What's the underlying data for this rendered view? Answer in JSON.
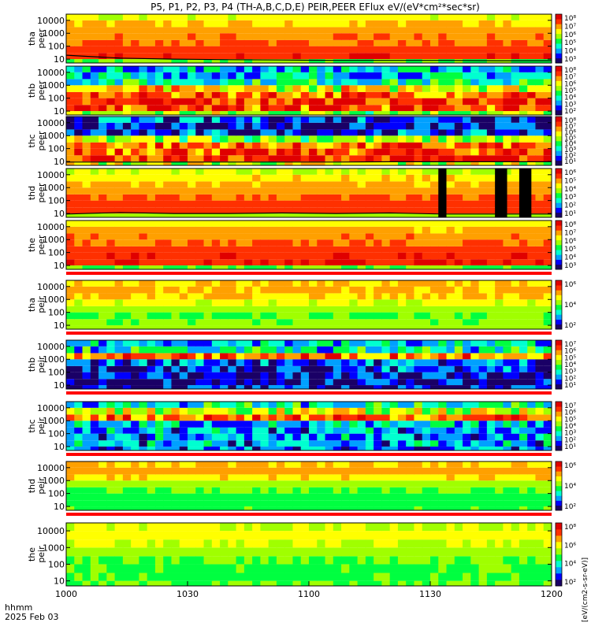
{
  "figure": {
    "title": "P5, P1, P2, P3, P4 (TH-A,B,C,D,E) PEIR,PEER EFlux eV/(eV*cm²*sec*sr)",
    "footer_line1": "hhmm",
    "footer_line2": "2025 Feb 03",
    "colorbar_label": "[eV/(cm2-s-sr-eV)]",
    "colors": {
      "background": "#ffffff",
      "separator_red": "#ff0000",
      "axis": "#000000"
    }
  },
  "chart_data": {
    "type": "heatmap",
    "x_axis": {
      "range": [
        "10:00",
        "12:00"
      ],
      "tick_labels": [
        "1000",
        "1030",
        "1100",
        "1130",
        "1200"
      ],
      "units": "hhmm"
    },
    "y_axis": {
      "scale": "log",
      "range": [
        5,
        30000
      ],
      "tick_labels": [
        "10",
        "100",
        "1000",
        "10000"
      ],
      "units": "eV"
    },
    "colormap": [
      "#1a0066",
      "#0000ff",
      "#00a0ff",
      "#00ffd0",
      "#00ff40",
      "#a0ff00",
      "#ffff00",
      "#ffa000",
      "#ff3000",
      "#e00000"
    ],
    "panels": [
      {
        "probe": "tha",
        "species": "peer",
        "ylabel": [
          "tha",
          "peer"
        ],
        "colorbar_ticks": [
          "10⁸",
          "10⁷",
          "10⁶",
          "10⁵",
          "10⁴",
          "10³"
        ],
        "bands": [
          [
            5,
            10,
            0.5
          ],
          [
            10,
            30,
            0.88
          ],
          [
            30,
            100,
            0.85
          ],
          [
            100,
            300,
            0.8
          ],
          [
            300,
            1000,
            0.78
          ],
          [
            1000,
            3000,
            0.74
          ],
          [
            3000,
            10000,
            0.7
          ],
          [
            10000,
            30000,
            0.62
          ]
        ],
        "noise": false,
        "overlay_line_ev": [
          20,
          12,
          10,
          9,
          8.5,
          8,
          8,
          8,
          7.5,
          7.5
        ]
      },
      {
        "probe": "thb",
        "species": "peer",
        "ylabel": [
          "thb",
          "peer"
        ],
        "colorbar_ticks": [
          "10⁸",
          "10⁷",
          "10⁶",
          "10⁵",
          "10⁴",
          "10³",
          "10²"
        ],
        "bands": [
          [
            5,
            10,
            0.55
          ],
          [
            10,
            30,
            0.85
          ],
          [
            30,
            100,
            0.88
          ],
          [
            100,
            300,
            0.82
          ],
          [
            300,
            1000,
            0.65
          ],
          [
            1000,
            3000,
            0.4
          ],
          [
            3000,
            10000,
            0.3
          ],
          [
            10000,
            30000,
            0.3
          ]
        ],
        "noise": true,
        "overlay_line_ev": null
      },
      {
        "probe": "thc",
        "species": "peer",
        "ylabel": [
          "thc",
          "peer"
        ],
        "colorbar_ticks": [
          "10⁸",
          "10⁷",
          "10⁶",
          "10⁵",
          "10⁴",
          "10³",
          "10²",
          "10¹"
        ],
        "bands": [
          [
            5,
            10,
            0.6
          ],
          [
            10,
            30,
            0.88
          ],
          [
            30,
            100,
            0.85
          ],
          [
            100,
            300,
            0.8
          ],
          [
            300,
            1000,
            0.55
          ],
          [
            1000,
            3000,
            0.15
          ],
          [
            3000,
            10000,
            0.12
          ],
          [
            10000,
            30000,
            0.2
          ]
        ],
        "noise": true,
        "overlay_line_ev": [
          9,
          9,
          9,
          9,
          9,
          9,
          9.5,
          9.5,
          9.5,
          9.5
        ]
      },
      {
        "probe": "thd",
        "species": "peer",
        "ylabel": [
          "thd",
          "peer"
        ],
        "colorbar_ticks": [
          "10⁶",
          "10⁵",
          "10⁴",
          "10³",
          "10²",
          "10¹"
        ],
        "bands": [
          [
            5,
            10,
            0.55
          ],
          [
            10,
            30,
            0.85
          ],
          [
            30,
            100,
            0.83
          ],
          [
            100,
            300,
            0.8
          ],
          [
            300,
            1000,
            0.76
          ],
          [
            1000,
            3000,
            0.72
          ],
          [
            3000,
            10000,
            0.68
          ],
          [
            10000,
            30000,
            0.6
          ]
        ],
        "noise": false,
        "overlay_line_ev": [
          9,
          12,
          10,
          10,
          11,
          10,
          11,
          9,
          9,
          9
        ],
        "data_gaps_hhmm": [
          [
            "11:32",
            "11:34"
          ],
          [
            "11:46",
            "11:49"
          ],
          [
            "11:52",
            "11:55"
          ]
        ]
      },
      {
        "probe": "the",
        "species": "peer",
        "ylabel": [
          "the",
          "peer"
        ],
        "colorbar_ticks": [
          "10⁸",
          "10⁷",
          "10⁶",
          "10⁵",
          "10⁴",
          "10³"
        ],
        "bands": [
          [
            5,
            10,
            0.5
          ],
          [
            10,
            30,
            0.9
          ],
          [
            30,
            100,
            0.88
          ],
          [
            100,
            300,
            0.84
          ],
          [
            300,
            1000,
            0.8
          ],
          [
            1000,
            3000,
            0.78
          ],
          [
            3000,
            10000,
            0.72
          ],
          [
            10000,
            30000,
            0.66
          ]
        ],
        "noise": false,
        "overlay_line_ev": null
      },
      {
        "probe": "tha",
        "species": "peir",
        "ylabel": [
          "tha",
          "peir"
        ],
        "colorbar_ticks": [
          "10⁶",
          "10⁴",
          "10²"
        ],
        "bands": [
          [
            5,
            10,
            0.55
          ],
          [
            10,
            30,
            0.52
          ],
          [
            30,
            100,
            0.5
          ],
          [
            100,
            300,
            0.55
          ],
          [
            300,
            1000,
            0.62
          ],
          [
            1000,
            3000,
            0.7
          ],
          [
            3000,
            10000,
            0.72
          ],
          [
            10000,
            30000,
            0.7
          ]
        ],
        "noise": false,
        "overlay_line_ev": null
      },
      {
        "probe": "thb",
        "species": "peir",
        "ylabel": [
          "thb",
          "peir"
        ],
        "colorbar_ticks": [
          "10⁷",
          "10⁶",
          "10⁵",
          "10⁴",
          "10³",
          "10²",
          "10¹"
        ],
        "bands": [
          [
            5,
            10,
            0.12
          ],
          [
            10,
            30,
            0.1
          ],
          [
            30,
            100,
            0.12
          ],
          [
            100,
            300,
            0.15
          ],
          [
            300,
            1000,
            0.2
          ],
          [
            1000,
            3000,
            0.8
          ],
          [
            3000,
            10000,
            0.35
          ],
          [
            10000,
            30000,
            0.3
          ]
        ],
        "noise": true,
        "overlay_line_ev": null
      },
      {
        "probe": "thc",
        "species": "peir",
        "ylabel": [
          "thc",
          "peir"
        ],
        "colorbar_ticks": [
          "10⁷",
          "10⁶",
          "10⁵",
          "10⁴",
          "10³",
          "10²",
          "10¹"
        ],
        "bands": [
          [
            5,
            10,
            0.22
          ],
          [
            10,
            30,
            0.25
          ],
          [
            30,
            100,
            0.25
          ],
          [
            100,
            300,
            0.25
          ],
          [
            300,
            1000,
            0.28
          ],
          [
            1000,
            3000,
            0.82
          ],
          [
            3000,
            10000,
            0.6
          ],
          [
            10000,
            30000,
            0.35
          ]
        ],
        "noise": true,
        "overlay_line_ev": null
      },
      {
        "probe": "thd",
        "species": "peir",
        "ylabel": [
          "thd",
          "peir"
        ],
        "colorbar_ticks": [
          "10⁶",
          "10⁴",
          "10²"
        ],
        "bands": [
          [
            5,
            10,
            0.48
          ],
          [
            10,
            30,
            0.45
          ],
          [
            30,
            100,
            0.45
          ],
          [
            100,
            300,
            0.5
          ],
          [
            300,
            1000,
            0.56
          ],
          [
            1000,
            3000,
            0.68
          ],
          [
            3000,
            10000,
            0.74
          ],
          [
            10000,
            30000,
            0.7
          ]
        ],
        "noise": false,
        "overlay_line_ev": null
      },
      {
        "probe": "the",
        "species": "peir",
        "ylabel": [
          "the",
          "peir"
        ],
        "colorbar_ticks": [
          "10⁸",
          "10⁶",
          "10⁴",
          "10²"
        ],
        "bands": [
          [
            5,
            10,
            0.5
          ],
          [
            10,
            30,
            0.48
          ],
          [
            30,
            100,
            0.48
          ],
          [
            100,
            300,
            0.5
          ],
          [
            300,
            1000,
            0.54
          ],
          [
            1000,
            3000,
            0.6
          ],
          [
            3000,
            10000,
            0.64
          ],
          [
            10000,
            30000,
            0.6
          ]
        ],
        "noise": false,
        "overlay_line_ev": null
      }
    ]
  }
}
